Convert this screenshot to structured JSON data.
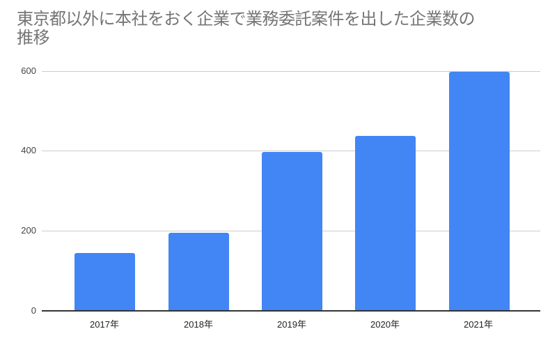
{
  "chart_data": {
    "type": "bar",
    "title": "東京都以外に本社をおく企業で業務委託案件を出した企業数の推移",
    "categories": [
      "2017年",
      "2018年",
      "2019年",
      "2020年",
      "2021年"
    ],
    "values": [
      145,
      195,
      398,
      438,
      598
    ],
    "xlabel": "",
    "ylabel": "",
    "ylim": [
      0,
      600
    ],
    "yticks": [
      0,
      200,
      400,
      600
    ],
    "grid": true,
    "legend": null,
    "bar_color": "#4285f4"
  },
  "title_line1": "東京都以外に本社をおく企業で業務委託案件を出した企業数の",
  "title_line2": "推移",
  "yaxis": {
    "ticks": [
      "600",
      "400",
      "200",
      "0"
    ]
  },
  "xaxis": {
    "labels": [
      "2017年",
      "2018年",
      "2019年",
      "2020年",
      "2021年"
    ]
  }
}
